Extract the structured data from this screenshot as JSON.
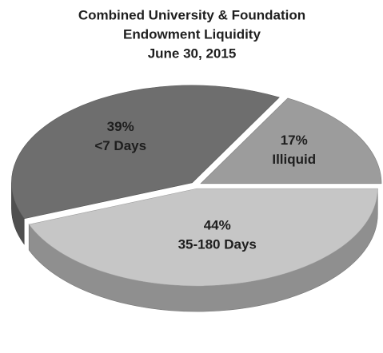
{
  "chart_data": {
    "type": "pie",
    "title": [
      "Combined University & Foundation",
      "Endowment Liquidity",
      "June 30, 2015"
    ],
    "categories": [
      "35-180 Days",
      "<7 Days",
      "Illiquid"
    ],
    "values": [
      44,
      39,
      17
    ],
    "value_labels": [
      "44%",
      "39%",
      "17%"
    ],
    "colors": [
      "#c6c6c6",
      "#6e6e6e",
      "#9c9c9c"
    ]
  }
}
